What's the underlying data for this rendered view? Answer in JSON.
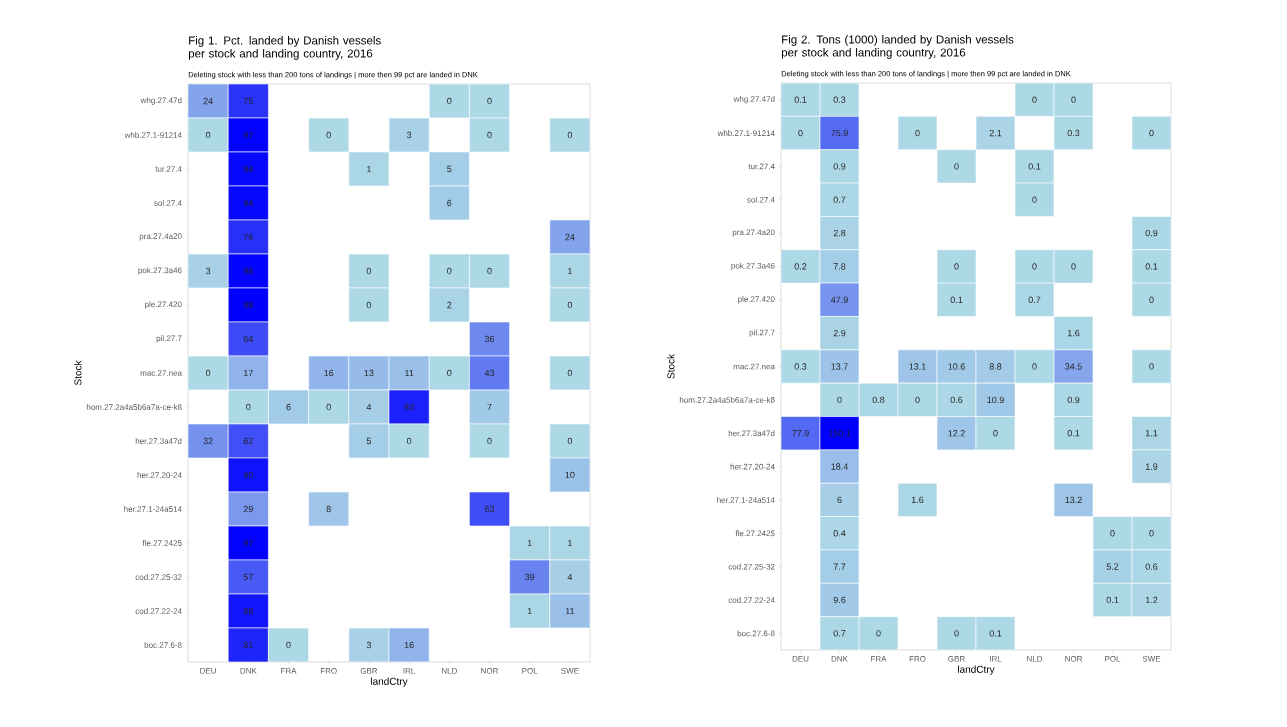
{
  "chart_data": [
    {
      "type": "heatmap",
      "title": "Fig 1. Pct. landed by Danish vessels per stock and landing country, 2016",
      "subtitle": "Deleting stock with less than 200 tons of landings | more then 99 pct are landed in DNK",
      "xlabel": "landCtry",
      "ylabel": "Stock",
      "data_labels": true,
      "categories": [
        "DEU",
        "DNK",
        "FRA",
        "FRO",
        "GBR",
        "IRL",
        "NLD",
        "NOR",
        "POL",
        "SWE"
      ],
      "y_categories": [
        "whg.27.47d",
        "whb.27.1-91214",
        "tur.27.4",
        "sol.27.4",
        "pra.27.4a20",
        "pok.27.3a46",
        "ple.27.420",
        "pil.27.7",
        "mac.27.nea",
        "hom.27.2a4a5b6a7a-ce-k8",
        "her.27.3a47d",
        "her.27.20-24",
        "her.27.1-24a514",
        "fle.27.2425",
        "cod.27.25-32",
        "cod.27.22-24",
        "boc.27.6-8"
      ],
      "cells": [
        [
          24,
          75,
          null,
          null,
          null,
          null,
          0,
          0,
          null,
          null
        ],
        [
          0,
          97,
          null,
          0,
          null,
          3,
          null,
          0,
          null,
          0
        ],
        [
          null,
          94,
          null,
          null,
          1,
          null,
          5,
          null,
          null,
          null
        ],
        [
          null,
          94,
          null,
          null,
          null,
          null,
          6,
          null,
          null,
          null
        ],
        [
          null,
          76,
          null,
          null,
          null,
          null,
          null,
          null,
          null,
          24
        ],
        [
          3,
          96,
          null,
          null,
          0,
          null,
          0,
          0,
          null,
          1
        ],
        [
          null,
          98,
          null,
          null,
          0,
          null,
          2,
          null,
          null,
          0
        ],
        [
          null,
          64,
          null,
          null,
          null,
          null,
          null,
          36,
          null,
          null
        ],
        [
          0,
          17,
          null,
          16,
          13,
          11,
          0,
          43,
          null,
          0
        ],
        [
          null,
          0,
          6,
          0,
          4,
          83,
          null,
          7,
          null,
          null
        ],
        [
          32,
          62,
          null,
          null,
          5,
          0,
          null,
          0,
          null,
          0
        ],
        [
          null,
          90,
          null,
          null,
          null,
          null,
          null,
          null,
          null,
          10
        ],
        [
          null,
          29,
          null,
          8,
          null,
          null,
          null,
          63,
          null,
          null
        ],
        [
          null,
          97,
          null,
          null,
          null,
          null,
          null,
          null,
          1,
          1
        ],
        [
          null,
          57,
          null,
          null,
          null,
          null,
          null,
          null,
          39,
          4
        ],
        [
          null,
          88,
          null,
          null,
          null,
          null,
          null,
          null,
          1,
          11
        ],
        [
          null,
          81,
          0,
          null,
          3,
          16,
          null,
          null,
          null,
          null
        ]
      ]
    },
    {
      "type": "heatmap",
      "title": "Fig 2. Tons (1000) landed by Danish vessels per stock and landing country, 2016",
      "subtitle": "Deleting stock with less than 200 tons of landings | more then 99 pct are landed in DNK",
      "xlabel": "landCtry",
      "ylabel": "Stock",
      "data_labels": true,
      "categories": [
        "DEU",
        "DNK",
        "FRA",
        "FRO",
        "GBR",
        "IRL",
        "NLD",
        "NOR",
        "POL",
        "SWE"
      ],
      "y_categories": [
        "whg.27.47d",
        "whb.27.1-91214",
        "tur.27.4",
        "sol.27.4",
        "pra.27.4a20",
        "pok.27.3a46",
        "ple.27.420",
        "pil.27.7",
        "mac.27.nea",
        "hom.27.2a4a5b6a7a-ce-k8",
        "her.27.3a47d",
        "her.27.20-24",
        "her.27.1-24a514",
        "fle.27.2425",
        "cod.27.25-32",
        "cod.27.22-24",
        "boc.27.6-8"
      ],
      "cells": [
        [
          0.1,
          0.3,
          null,
          null,
          null,
          null,
          0,
          0,
          null,
          null
        ],
        [
          0,
          75.9,
          null,
          0,
          null,
          2.1,
          null,
          0.3,
          null,
          0
        ],
        [
          null,
          0.9,
          null,
          null,
          0,
          null,
          0.1,
          null,
          null,
          null
        ],
        [
          null,
          0.7,
          null,
          null,
          null,
          null,
          0,
          null,
          null,
          null
        ],
        [
          null,
          2.8,
          null,
          null,
          null,
          null,
          null,
          null,
          null,
          0.9
        ],
        [
          0.2,
          7.8,
          null,
          null,
          0,
          null,
          0,
          0,
          null,
          0.1
        ],
        [
          null,
          47.9,
          null,
          null,
          0.1,
          null,
          0.7,
          null,
          null,
          0
        ],
        [
          null,
          2.9,
          null,
          null,
          null,
          null,
          null,
          1.6,
          null,
          null
        ],
        [
          0.3,
          13.7,
          null,
          13.1,
          10.6,
          8.8,
          0,
          34.5,
          null,
          0
        ],
        [
          null,
          0,
          0.8,
          0,
          0.6,
          10.9,
          null,
          0.9,
          null,
          null
        ],
        [
          77.9,
          150.1,
          null,
          null,
          12.2,
          0,
          null,
          0.1,
          null,
          1.1
        ],
        [
          null,
          18.4,
          null,
          null,
          null,
          null,
          null,
          null,
          null,
          1.9
        ],
        [
          null,
          6,
          null,
          1.6,
          null,
          null,
          null,
          13.2,
          null,
          null
        ],
        [
          null,
          0.4,
          null,
          null,
          null,
          null,
          null,
          null,
          0,
          0
        ],
        [
          null,
          7.7,
          null,
          null,
          null,
          null,
          null,
          null,
          5.2,
          0.6
        ],
        [
          null,
          9.6,
          null,
          null,
          null,
          null,
          null,
          null,
          0.1,
          1.2
        ],
        [
          null,
          0.7,
          0,
          null,
          0,
          0.1,
          null,
          null,
          null,
          null
        ]
      ]
    }
  ]
}
